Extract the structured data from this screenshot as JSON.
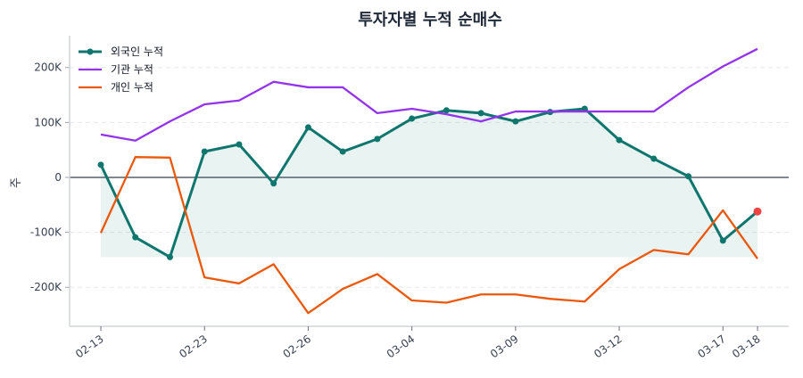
{
  "chart_data": {
    "type": "line",
    "title": "투자자별 누적 순매수",
    "xlabel": "",
    "ylabel": "주",
    "x": [
      0,
      1,
      2,
      3,
      4,
      5,
      6,
      7,
      8,
      9,
      10,
      11,
      12,
      13,
      14,
      15,
      16,
      17,
      18,
      19
    ],
    "x_ticks": [
      {
        "index": 0,
        "label": "02-13"
      },
      {
        "index": 3,
        "label": "02-23"
      },
      {
        "index": 6,
        "label": "02-26"
      },
      {
        "index": 9,
        "label": "03-04"
      },
      {
        "index": 12,
        "label": "03-09"
      },
      {
        "index": 15,
        "label": "03-12"
      },
      {
        "index": 18,
        "label": "03-17"
      },
      {
        "index": 19,
        "label": "03-18"
      }
    ],
    "y_ticks": [
      {
        "value": -200000,
        "label": "-200K"
      },
      {
        "value": -100000,
        "label": "-100K"
      },
      {
        "value": 0,
        "label": "0"
      },
      {
        "value": 100000,
        "label": "100K"
      },
      {
        "value": 200000,
        "label": "200K"
      }
    ],
    "ylim": [
      -271000,
      258000
    ],
    "grid": "y-dashed",
    "legend_position": "top-left",
    "zero_line": true,
    "series": [
      {
        "name": "외국인 누적",
        "color": "#0f766e",
        "markers": true,
        "fill_to_min": true,
        "last_point_color": "#ef4444",
        "values": [
          23000,
          -109000,
          -145000,
          47000,
          60000,
          -11000,
          91000,
          47000,
          70000,
          107000,
          122000,
          117000,
          102000,
          119000,
          125000,
          68000,
          34000,
          2000,
          -115000,
          -62000
        ]
      },
      {
        "name": "기관 누적",
        "color": "#9333ea",
        "markers": false,
        "values": [
          78000,
          67000,
          102000,
          133000,
          140000,
          174000,
          164000,
          164000,
          117000,
          125000,
          115000,
          102000,
          120000,
          120000,
          120000,
          120000,
          120000,
          164000,
          202000,
          234000
        ]
      },
      {
        "name": "개인 누적",
        "color": "#ea580c",
        "markers": false,
        "values": [
          -101000,
          37000,
          36000,
          -182000,
          -193000,
          -158000,
          -247000,
          -203000,
          -176000,
          -224000,
          -228000,
          -213000,
          -213000,
          -221000,
          -226000,
          -167000,
          -132000,
          -140000,
          -60000,
          -148000
        ]
      }
    ]
  }
}
